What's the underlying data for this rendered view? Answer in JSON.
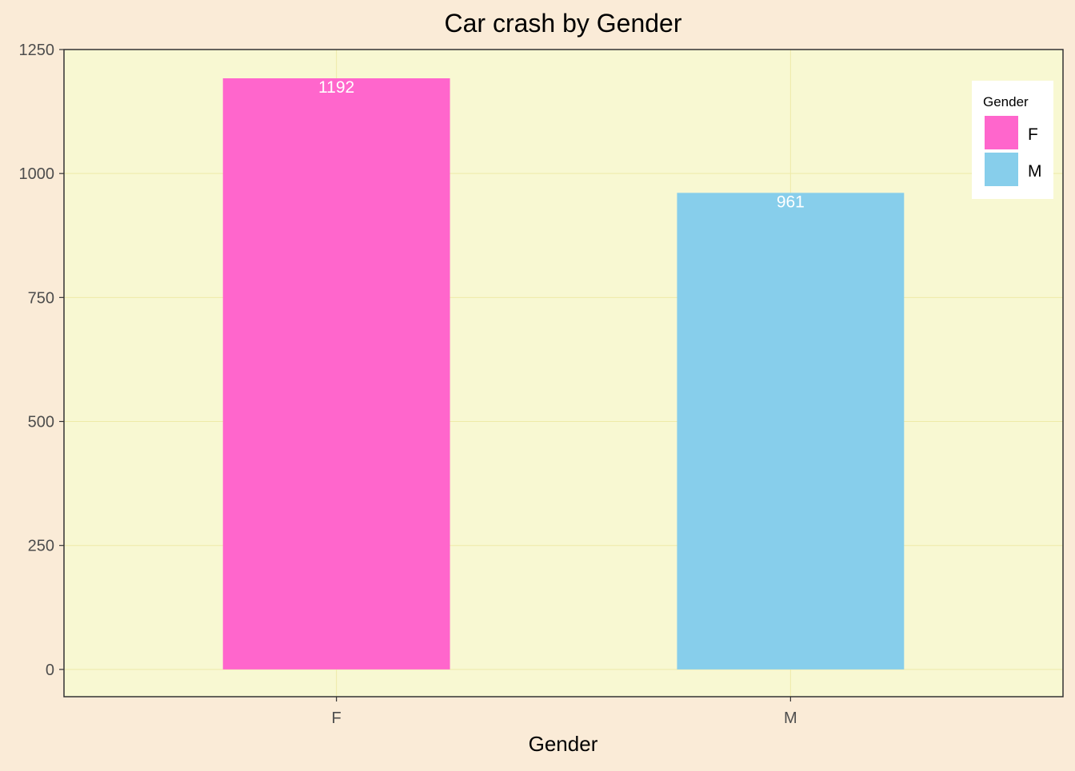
{
  "chart_data": {
    "type": "bar",
    "title": "Car crash by Gender",
    "xlabel": "Gender",
    "ylabel": "",
    "categories": [
      "F",
      "M"
    ],
    "values": [
      1192,
      961
    ],
    "data_labels": [
      "1192",
      "961"
    ],
    "bar_colors": [
      "#FF66CC",
      "#87CEEB"
    ],
    "ylim": [
      -55,
      1250
    ],
    "yticks": [
      0,
      250,
      500,
      750,
      1000,
      1250
    ],
    "ytick_labels": [
      "0",
      "250",
      "500",
      "750",
      "1000",
      "1250"
    ],
    "grid": true,
    "legend": {
      "title": "Gender",
      "position": "top-right",
      "items": [
        {
          "label": "F",
          "color": "#FF66CC"
        },
        {
          "label": "M",
          "color": "#87CEEB"
        }
      ]
    },
    "colors": {
      "page_background": "#FAEBD7",
      "panel_background": "#F8F8D2",
      "grid": "#EEEAA8",
      "axis": "#333333",
      "data_label": "#FFFFFF"
    }
  }
}
